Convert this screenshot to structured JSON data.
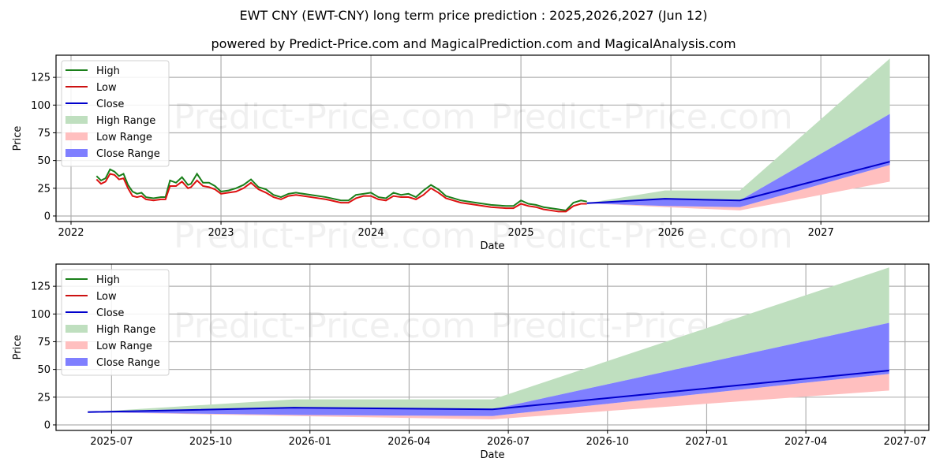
{
  "header": {
    "title": "EWT CNY (EWT-CNY) long term price prediction : 2025,2026,2027 (Jun 12)",
    "subtitle": "powered by Predict-Price.com and MagicalPrediction.com and MagicalAnalysis.com"
  },
  "watermark": "Predict-Price.com",
  "colors": {
    "high": "#008000",
    "low": "#ff0000",
    "close": "#0000cc",
    "high_range": "#2ca02c",
    "low_range": "#ff6666",
    "close_range": "#3333ff",
    "grid": "#b0b0b0"
  },
  "legend": [
    {
      "label": "High",
      "kind": "line",
      "color": "#1a7f1a"
    },
    {
      "label": "Low",
      "kind": "line",
      "color": "#cc1111"
    },
    {
      "label": "Close",
      "kind": "line",
      "color": "#0000cc"
    },
    {
      "label": "High Range",
      "kind": "patch",
      "color": "#bfdfbf"
    },
    {
      "label": "Low Range",
      "kind": "patch",
      "color": "#ffbfbf"
    },
    {
      "label": "Close Range",
      "kind": "patch",
      "color": "#7f7fff"
    }
  ],
  "chart_data": [
    {
      "type": "line",
      "title": "EWT CNY (EWT-CNY) long term price prediction : 2025,2026,2027 (Jun 12)",
      "xlabel": "Date",
      "ylabel": "Price",
      "ylim": [
        -5,
        145
      ],
      "yticks": [
        0,
        25,
        50,
        75,
        100,
        125
      ],
      "xticks": [
        "2022",
        "2023",
        "2024",
        "2025",
        "2026",
        "2027"
      ],
      "xlim": [
        2021.9,
        2027.72
      ],
      "grid": true,
      "legend_position": "upper left",
      "historical": {
        "x": [
          2022.17,
          2022.2,
          2022.23,
          2022.26,
          2022.29,
          2022.32,
          2022.35,
          2022.38,
          2022.41,
          2022.44,
          2022.47,
          2022.5,
          2022.55,
          2022.6,
          2022.63,
          2022.66,
          2022.7,
          2022.74,
          2022.78,
          2022.8,
          2022.84,
          2022.88,
          2022.92,
          2022.96,
          2023.0,
          2023.05,
          2023.1,
          2023.15,
          2023.2,
          2023.25,
          2023.3,
          2023.35,
          2023.4,
          2023.45,
          2023.5,
          2023.6,
          2023.7,
          2023.8,
          2023.85,
          2023.9,
          2023.95,
          2024.0,
          2024.05,
          2024.1,
          2024.15,
          2024.2,
          2024.25,
          2024.3,
          2024.35,
          2024.4,
          2024.45,
          2024.5,
          2024.55,
          2024.6,
          2024.7,
          2024.8,
          2024.9,
          2024.95,
          2025.0,
          2025.05,
          2025.1,
          2025.15,
          2025.2,
          2025.25,
          2025.3,
          2025.35,
          2025.4,
          2025.44
        ],
        "high": [
          36,
          32,
          34,
          42,
          40,
          36,
          38,
          28,
          22,
          20,
          21,
          17,
          16,
          17,
          17,
          32,
          30,
          35,
          28,
          29,
          38,
          30,
          30,
          27,
          22,
          23,
          25,
          28,
          33,
          26,
          24,
          19,
          17,
          20,
          21,
          19,
          17,
          14,
          14,
          19,
          20,
          21,
          17,
          16,
          21,
          19,
          20,
          17,
          23,
          28,
          24,
          18,
          16,
          14,
          12,
          10,
          9,
          9,
          14,
          11,
          10,
          8,
          7,
          6,
          5,
          12,
          14,
          13
        ],
        "low": [
          33,
          29,
          31,
          38,
          37,
          33,
          34,
          25,
          18,
          17,
          18,
          15,
          14,
          15,
          15,
          27,
          27,
          31,
          25,
          26,
          32,
          27,
          26,
          24,
          20,
          21,
          22,
          25,
          30,
          24,
          21,
          17,
          15,
          18,
          19,
          17,
          15,
          12,
          12,
          16,
          18,
          18,
          15,
          14,
          18,
          17,
          17,
          15,
          19,
          25,
          21,
          16,
          14,
          12,
          10,
          8,
          7,
          7,
          11,
          9,
          8,
          6,
          5,
          4,
          4,
          9,
          11,
          11
        ]
      },
      "forecast": {
        "x": [
          2025.44,
          2025.96,
          2026.46,
          2027.46
        ],
        "close": [
          11.5,
          15.5,
          14,
          49
        ],
        "high_range": {
          "lower": [
            11.5,
            15.5,
            14,
            92
          ],
          "upper": [
            11.5,
            23,
            23,
            142
          ]
        },
        "close_range": {
          "lower": [
            11.5,
            9,
            8,
            46
          ],
          "upper": [
            11.5,
            15.5,
            14,
            92
          ]
        },
        "low_range": {
          "lower": [
            11.5,
            8,
            5,
            31
          ],
          "upper": [
            11.5,
            9,
            8,
            46
          ]
        }
      }
    },
    {
      "type": "line",
      "title": "",
      "xlabel": "Date",
      "ylabel": "Price",
      "ylim": [
        -5,
        145
      ],
      "yticks": [
        0,
        25,
        50,
        75,
        100,
        125
      ],
      "xticks": [
        "2025-07",
        "2025-10",
        "2026-01",
        "2026-04",
        "2026-07",
        "2026-10",
        "2027-01",
        "2027-04",
        "2027-07"
      ],
      "xlim": [
        2025.36,
        2027.56
      ],
      "grid": true,
      "legend_position": "upper left",
      "forecast": {
        "x": [
          2025.44,
          2025.96,
          2026.46,
          2027.46
        ],
        "close": [
          11.5,
          15.5,
          14,
          49
        ],
        "high_range": {
          "lower": [
            11.5,
            15.5,
            14,
            92
          ],
          "upper": [
            11.5,
            23,
            23,
            142
          ]
        },
        "close_range": {
          "lower": [
            11.5,
            9,
            8,
            46
          ],
          "upper": [
            11.5,
            15.5,
            14,
            92
          ]
        },
        "low_range": {
          "lower": [
            11.5,
            8,
            5,
            31
          ],
          "upper": [
            11.5,
            9,
            8,
            46
          ]
        }
      }
    }
  ]
}
